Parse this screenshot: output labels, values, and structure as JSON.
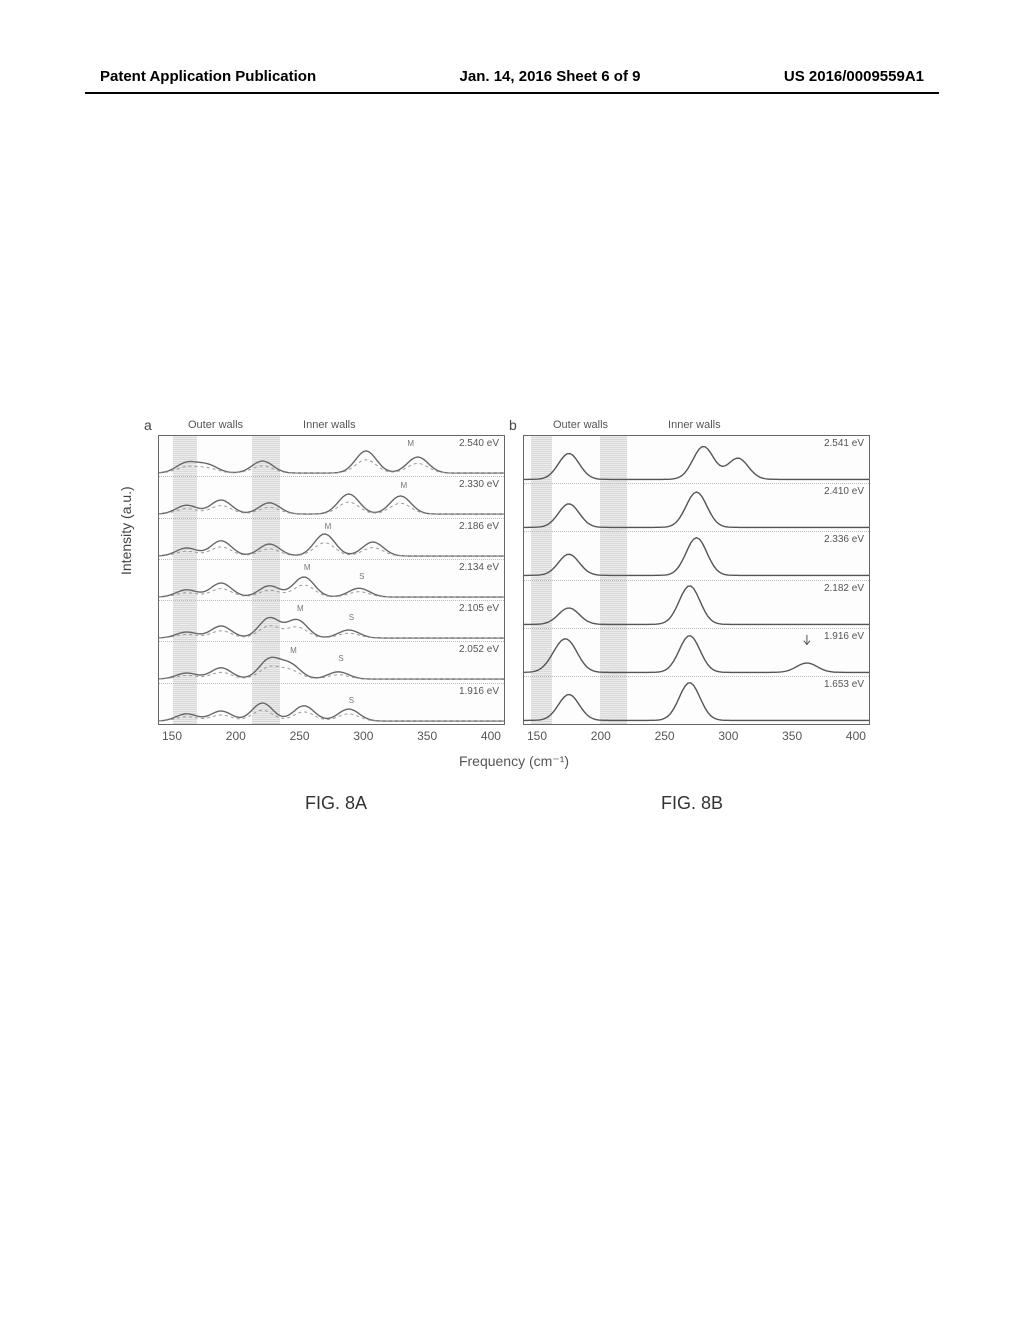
{
  "header": {
    "left": "Patent Application Publication",
    "center": "Jan. 14, 2016  Sheet 6 of 9",
    "right": "US 2016/0009559A1"
  },
  "yAxisLabel": "Intensity (a.u.)",
  "xAxisLabel": "Frequency (cm⁻¹)",
  "xTicks": [
    "150",
    "200",
    "250",
    "300",
    "350",
    "400"
  ],
  "panelA": {
    "label": "a",
    "outerHeader": "Outer walls",
    "innerHeader": "Inner walls",
    "shadeBands": [
      {
        "leftPct": 4,
        "widthPct": 7
      },
      {
        "leftPct": 27,
        "widthPct": 8
      }
    ],
    "traces": [
      {
        "label": "2.540 eV",
        "peaks": [
          0.08,
          0.14,
          0.3,
          0.6,
          0.75
        ],
        "heights": [
          0.25,
          0.2,
          0.3,
          0.55,
          0.4
        ],
        "mPos": 0.72
      },
      {
        "label": "2.330 eV",
        "peaks": [
          0.08,
          0.18,
          0.32,
          0.55,
          0.7
        ],
        "heights": [
          0.22,
          0.35,
          0.28,
          0.5,
          0.45
        ],
        "mPos": 0.7
      },
      {
        "label": "2.186 eV",
        "peaks": [
          0.08,
          0.18,
          0.32,
          0.48,
          0.62
        ],
        "heights": [
          0.2,
          0.38,
          0.3,
          0.55,
          0.35
        ],
        "mPos": 0.48
      },
      {
        "label": "2.134 eV",
        "peaks": [
          0.08,
          0.18,
          0.32,
          0.42,
          0.58
        ],
        "heights": [
          0.18,
          0.35,
          0.28,
          0.5,
          0.22
        ],
        "mPos": 0.42,
        "sPos": 0.58
      },
      {
        "label": "2.105 eV",
        "peaks": [
          0.08,
          0.18,
          0.32,
          0.4,
          0.55
        ],
        "heights": [
          0.15,
          0.3,
          0.5,
          0.45,
          0.2
        ],
        "mPos": 0.4,
        "sPos": 0.55
      },
      {
        "label": "2.052 eV",
        "peaks": [
          0.08,
          0.18,
          0.32,
          0.38,
          0.52
        ],
        "heights": [
          0.15,
          0.28,
          0.48,
          0.35,
          0.18
        ],
        "mPos": 0.38,
        "sPos": 0.52
      },
      {
        "label": "1.916 eV",
        "peaks": [
          0.08,
          0.18,
          0.3,
          0.42,
          0.55
        ],
        "heights": [
          0.18,
          0.25,
          0.45,
          0.38,
          0.3
        ],
        "sPos": 0.55
      }
    ],
    "strokeColor": "#666666",
    "dashedColor": "#999999",
    "figCaption": "FIG. 8A"
  },
  "panelB": {
    "label": "b",
    "outerHeader": "Outer walls",
    "innerHeader": "Inner walls",
    "shadeBands": [
      {
        "leftPct": 2,
        "widthPct": 6
      },
      {
        "leftPct": 22,
        "widthPct": 8
      }
    ],
    "traces": [
      {
        "label": "2.541 eV",
        "peaks": [
          0.13,
          0.52,
          0.62
        ],
        "heights": [
          0.55,
          0.7,
          0.45
        ]
      },
      {
        "label": "2.410 eV",
        "peaks": [
          0.13,
          0.5
        ],
        "heights": [
          0.5,
          0.75
        ]
      },
      {
        "label": "2.336 eV",
        "peaks": [
          0.13,
          0.5
        ],
        "heights": [
          0.45,
          0.8
        ]
      },
      {
        "label": "2.182 eV",
        "peaks": [
          0.13,
          0.48
        ],
        "heights": [
          0.35,
          0.82
        ]
      },
      {
        "label": "1.916 eV",
        "peaks": [
          0.1,
          0.13,
          0.48,
          0.82
        ],
        "heights": [
          0.3,
          0.5,
          0.78,
          0.2
        ],
        "arrowPos": 0.82
      },
      {
        "label": "1.653 eV",
        "peaks": [
          0.13,
          0.48
        ],
        "heights": [
          0.55,
          0.8
        ]
      }
    ],
    "strokeColor": "#555555",
    "figCaption": "FIG. 8B"
  },
  "colors": {
    "pageBg": "#ffffff",
    "text": "#000000",
    "axisText": "#555555",
    "shade": "#bbbbbb"
  }
}
